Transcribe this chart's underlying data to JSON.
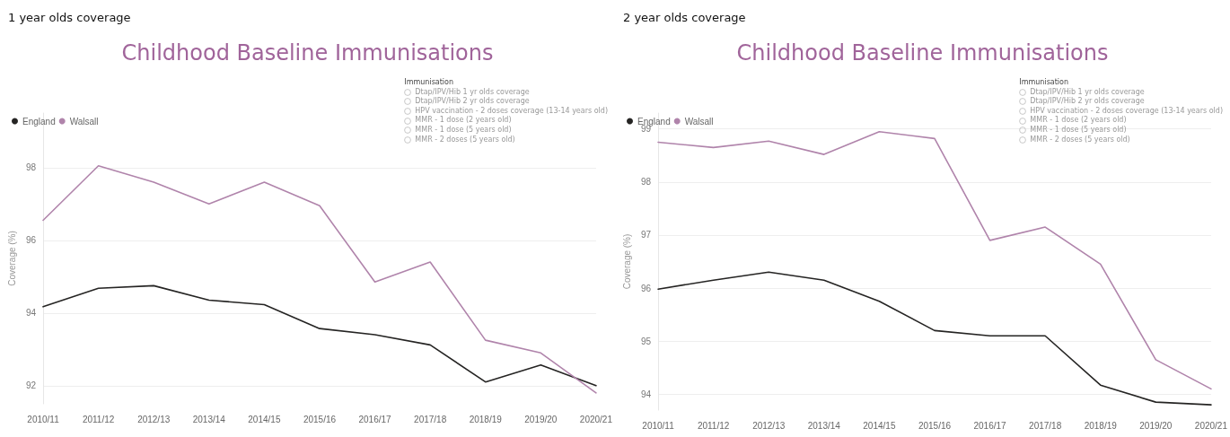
{
  "chart_data": [
    {
      "type": "line",
      "subtitle": "1 year olds coverage",
      "title": "Childhood Baseline Immunisations",
      "ylabel": "Coverage (%)",
      "categories": [
        "2010/11",
        "2011/12",
        "2012/13",
        "2013/14",
        "2014/15",
        "2015/16",
        "2016/17",
        "2017/18",
        "2018/19",
        "2019/20",
        "2020/21"
      ],
      "series": [
        {
          "name": "England",
          "color": "#252423",
          "values": [
            94.17,
            94.68,
            94.75,
            94.35,
            94.23,
            93.57,
            93.4,
            93.12,
            92.1,
            92.57,
            92.0
          ]
        },
        {
          "name": "Walsall",
          "color": "#b084ab",
          "values": [
            96.55,
            98.05,
            97.6,
            97.0,
            97.6,
            96.95,
            94.85,
            95.4,
            93.25,
            92.9,
            91.8
          ]
        }
      ],
      "ylim": [
        91.5,
        99.5
      ],
      "yticks": [
        92,
        94,
        96,
        98
      ],
      "grid": "y",
      "legend": "top left",
      "marker": "none",
      "line_style": "solid",
      "annotations": [
        "Immunisation",
        "Dtap/IPV/Hib 1 yr olds coverage",
        "Dtap/IPV/Hib 2 yr olds coverage",
        "HPV vaccination - 2 doses coverage (13-14 years old)",
        "MMR - 1 dose (2 years old)",
        "MMR - 1 dose (5 years old)",
        "MMR - 2 doses (5 years old)"
      ]
    },
    {
      "type": "line",
      "subtitle": "2 year olds coverage",
      "title": "Childhood Baseline Immunisations",
      "ylabel": "Coverage (%)",
      "categories": [
        "2010/11",
        "2011/12",
        "2012/13",
        "2013/14",
        "2014/15",
        "2015/16",
        "2016/17",
        "2017/18",
        "2018/19",
        "2019/20",
        "2020/21"
      ],
      "series": [
        {
          "name": "England",
          "color": "#252423",
          "values": [
            95.98,
            96.15,
            96.3,
            96.15,
            95.75,
            95.2,
            95.1,
            95.1,
            94.17,
            93.85,
            93.8
          ]
        },
        {
          "name": "Walsall",
          "color": "#b084ab",
          "values": [
            98.75,
            98.65,
            98.77,
            98.52,
            98.95,
            98.82,
            96.9,
            97.15,
            96.45,
            94.65,
            94.1
          ]
        }
      ],
      "ylim": [
        93.7,
        99.3
      ],
      "yticks": [
        94,
        95,
        96,
        97,
        98,
        99
      ],
      "grid": "y",
      "legend": "top left",
      "marker": "none",
      "line_style": "solid",
      "annotations": [
        "Immunisation",
        "Dtap/IPV/Hib 1 yr olds coverage",
        "Dtap/IPV/Hib 2 yr olds coverage",
        "HPV vaccination - 2 doses coverage (13-14 years old)",
        "MMR - 1 dose (2 years old)",
        "MMR - 1 dose (5 years old)",
        "MMR - 2 doses (5 years old)"
      ]
    }
  ]
}
